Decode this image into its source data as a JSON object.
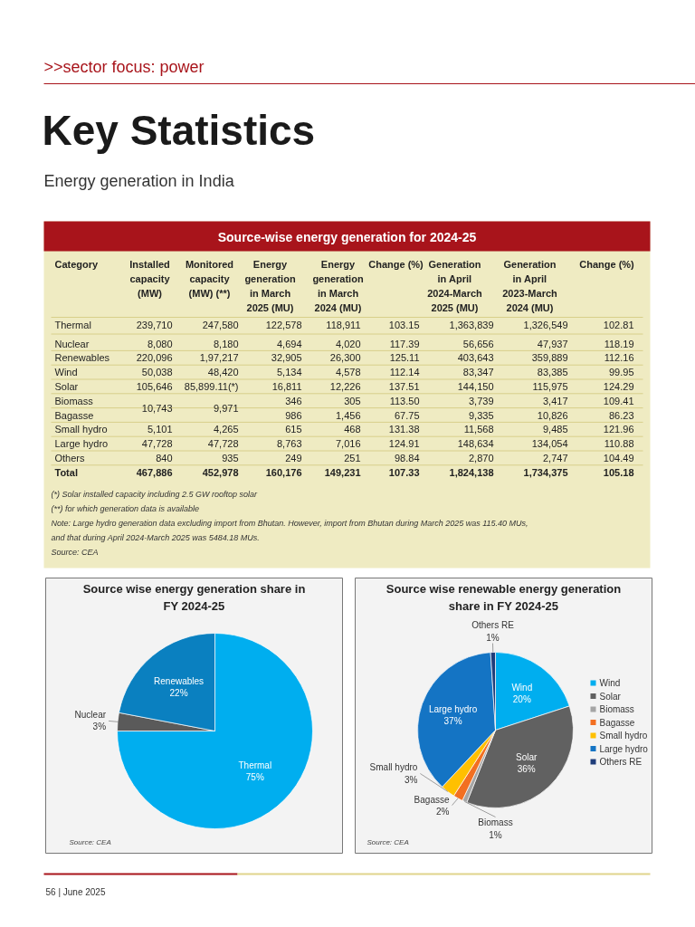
{
  "chart_data": [
    {
      "type": "other",
      "title": "Key Statistics",
      "subtitle": "Energy generation in India",
      "annotations": [
        ">>sector focus: power",
        "Source-wise energy generation for 2024-25",
        "(*) Solar installed capacity including 2.5 GW rooftop solar",
        "(**) for which generation data is available",
        "Note: Large hydro generation data excluding import from Bhutan. However, import from Bhutan during March 2025 was 115.40 MUs,",
        "and that during April 2024-March 2025 was 5484.18 MUs.",
        "Source: CEA",
        "56 | June 2025"
      ],
      "categories": [
        "Category",
        "Installed capacity (MW)",
        "Monitored capacity (MW) (**)",
        "Energy generation in March 2025 (MU)",
        "Energy generation in March 2024 (MU)",
        "Change (%)",
        "Generation in April 2024-March 2025 (MU)",
        "Generation in April 2023-March 2024 (MU)",
        "Change (%)"
      ],
      "y_categories": [
        "Thermal",
        "Nuclear",
        "Renewables",
        "Wind",
        "Solar",
        "Biomass",
        "Bagasse",
        "Small hydro",
        "Large hydro",
        "Others",
        "Total"
      ],
      "cell_labels": [
        [
          "239,710",
          "247,580",
          "122,578",
          "118,911",
          "103.15",
          "1,363,839",
          "1,326,549",
          "102.81"
        ],
        [
          "8,080",
          "8,180",
          "4,694",
          "4,020",
          "117.39",
          "56,656",
          "47,937",
          "118.19"
        ],
        [
          "220,096",
          "1,97,217",
          "32,905",
          "26,300",
          "125.11",
          "403,643",
          "359,889",
          "112.16"
        ],
        [
          "50,038",
          "48,420",
          "5,134",
          "4,578",
          "112.14",
          "83,347",
          "83,385",
          "99.95"
        ],
        [
          "105,646",
          "85,899.11(*)",
          "16,811",
          "12,226",
          "137.51",
          "144,150",
          "115,975",
          "124.29"
        ],
        [
          "10,743",
          "9,971",
          "346",
          "305",
          "113.50",
          "3,739",
          "3,417",
          "109.41"
        ],
        [
          null,
          null,
          "986",
          "1,456",
          "67.75",
          "9,335",
          "10,826",
          "86.23"
        ],
        [
          "5,101",
          "4,265",
          "615",
          "468",
          "131.38",
          "11,568",
          "9,485",
          "121.96"
        ],
        [
          "47,728",
          "47,728",
          "8,763",
          "7,016",
          "124.91",
          "148,634",
          "134,054",
          "110.88"
        ],
        [
          "840",
          "935",
          "249",
          "251",
          "98.84",
          "2,870",
          "2,747",
          "104.49"
        ],
        [
          "467,886",
          "452,978",
          "160,176",
          "149,231",
          "107.33",
          "1,824,138",
          "1,734,375",
          "105.18"
        ]
      ]
    },
    {
      "type": "pie",
      "title": "Source wise energy generation share in FY 2024-25",
      "categories": [
        "Thermal",
        "Nuclear",
        "Renewables"
      ],
      "values": [
        75,
        3,
        22
      ],
      "value_labels": [
        "75%",
        "3%",
        "22%"
      ],
      "colors": [
        "#00aeef",
        "#5a5a5a",
        "#0a80c0"
      ],
      "annotations": [
        "Source: CEA"
      ]
    },
    {
      "type": "pie",
      "title": "Source wise renewable energy generation share in FY 2024-25",
      "categories": [
        "Wind",
        "Solar",
        "Biomass",
        "Bagasse",
        "Small hydro",
        "Large hydro",
        "Others RE"
      ],
      "values": [
        20,
        36,
        1,
        2,
        3,
        37,
        1
      ],
      "value_labels": [
        "20%",
        "36%",
        "1%",
        "2%",
        "3%",
        "37%",
        "1%"
      ],
      "colors": [
        "#00aeef",
        "#616161",
        "#a5a5a5",
        "#f26f21",
        "#ffc000",
        "#1474c4",
        "#1f3d7a"
      ],
      "legend": "right",
      "annotations": [
        "Source: CEA"
      ]
    }
  ]
}
